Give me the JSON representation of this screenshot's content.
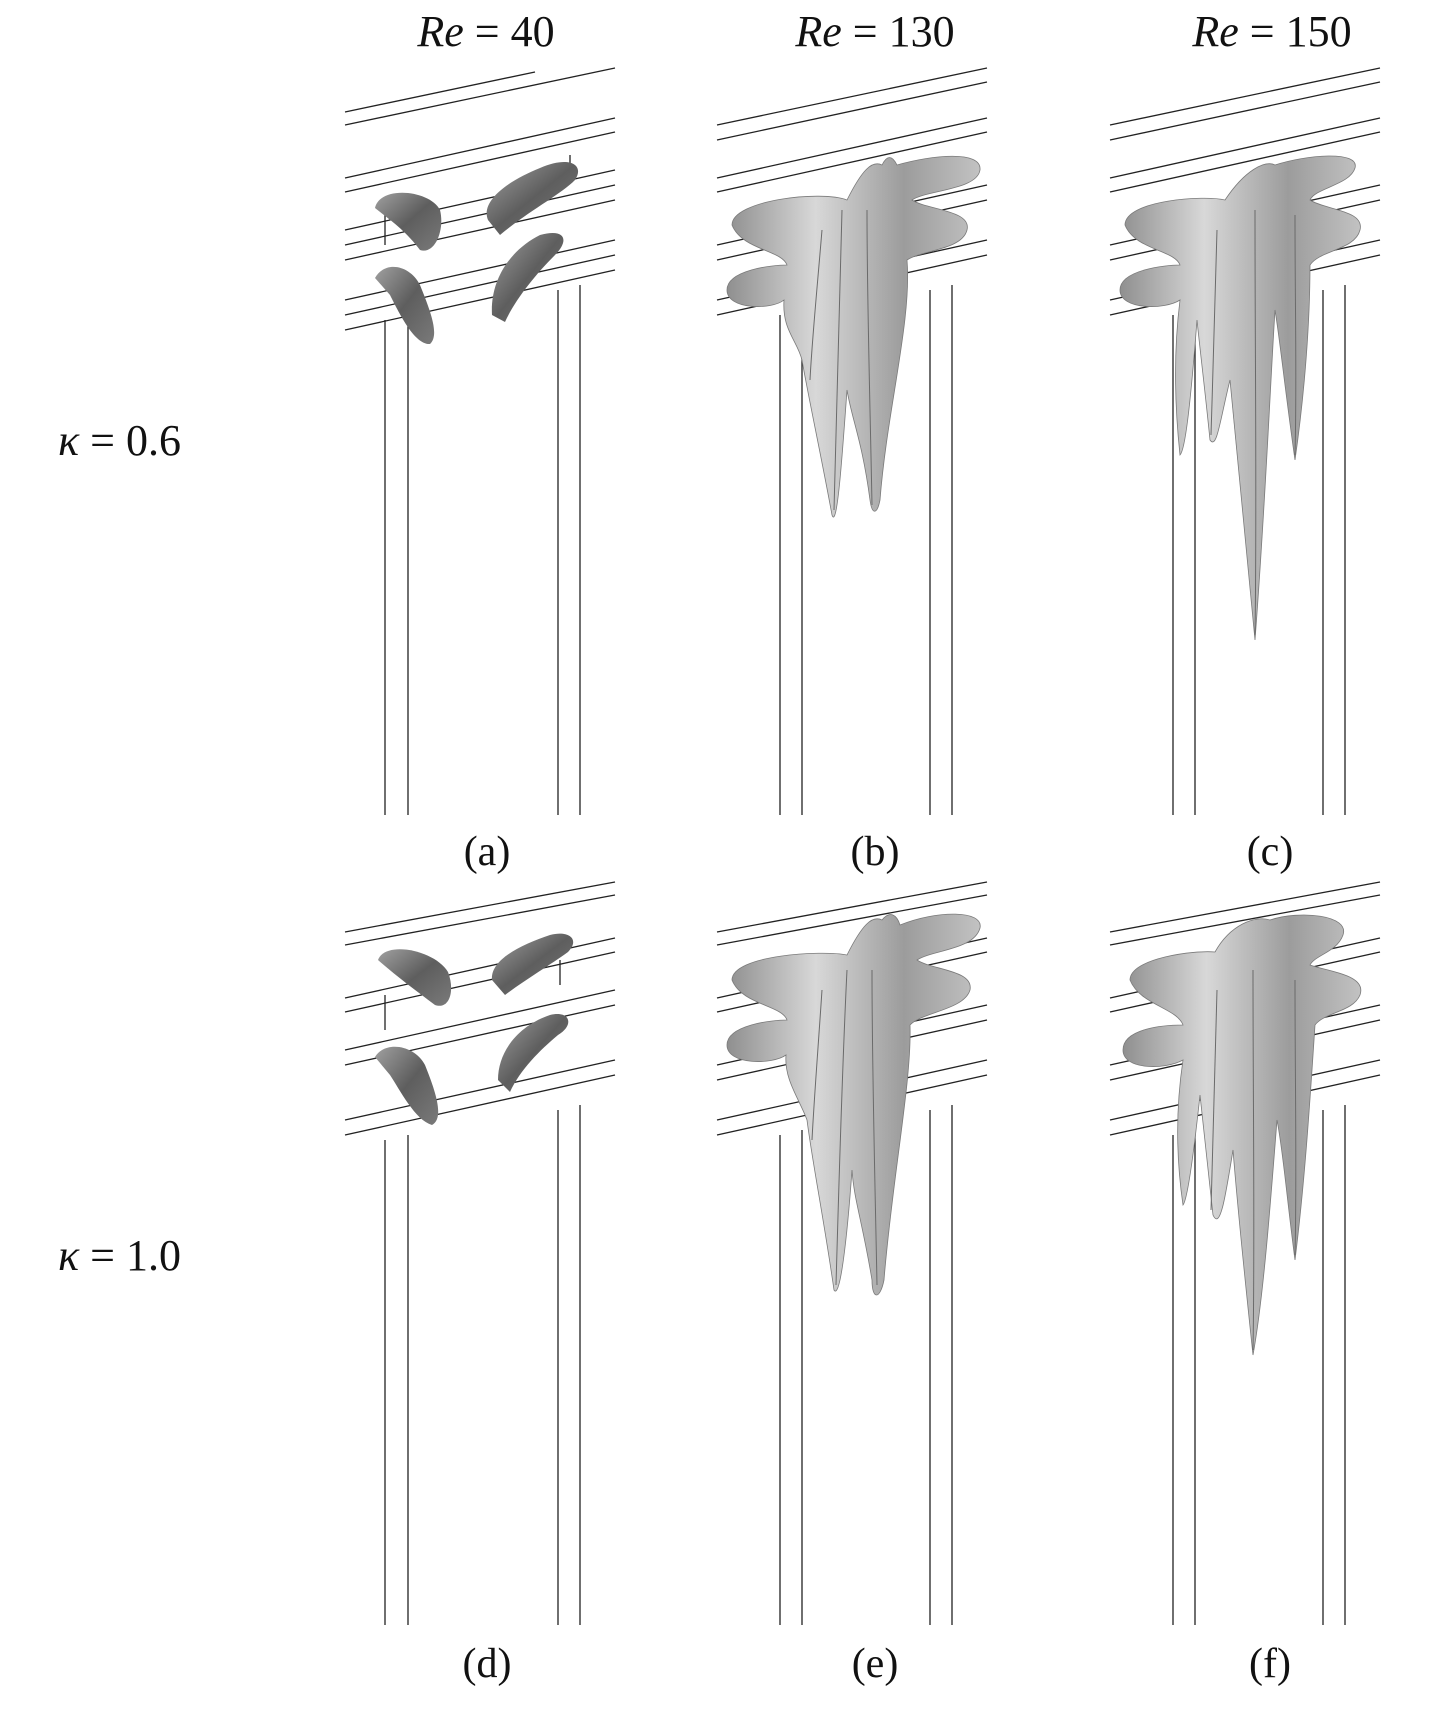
{
  "columns": [
    {
      "symbol": "Re",
      "eq": " = ",
      "value": "40"
    },
    {
      "symbol": "Re",
      "eq": " = ",
      "value": "130"
    },
    {
      "symbol": "Re",
      "eq": " = ",
      "value": "150"
    }
  ],
  "rows": [
    {
      "symbol": "κ",
      "eq": " = ",
      "value": "0.6"
    },
    {
      "symbol": "κ",
      "eq": " = ",
      "value": "1.0"
    }
  ],
  "captions": [
    "(a)",
    "(b)",
    "(c)",
    "(d)",
    "(e)",
    "(f)"
  ],
  "colors": {
    "isosurface_dark": "#6e6e6e",
    "isosurface_light": "#b9b9b9",
    "edge": "#222222"
  }
}
